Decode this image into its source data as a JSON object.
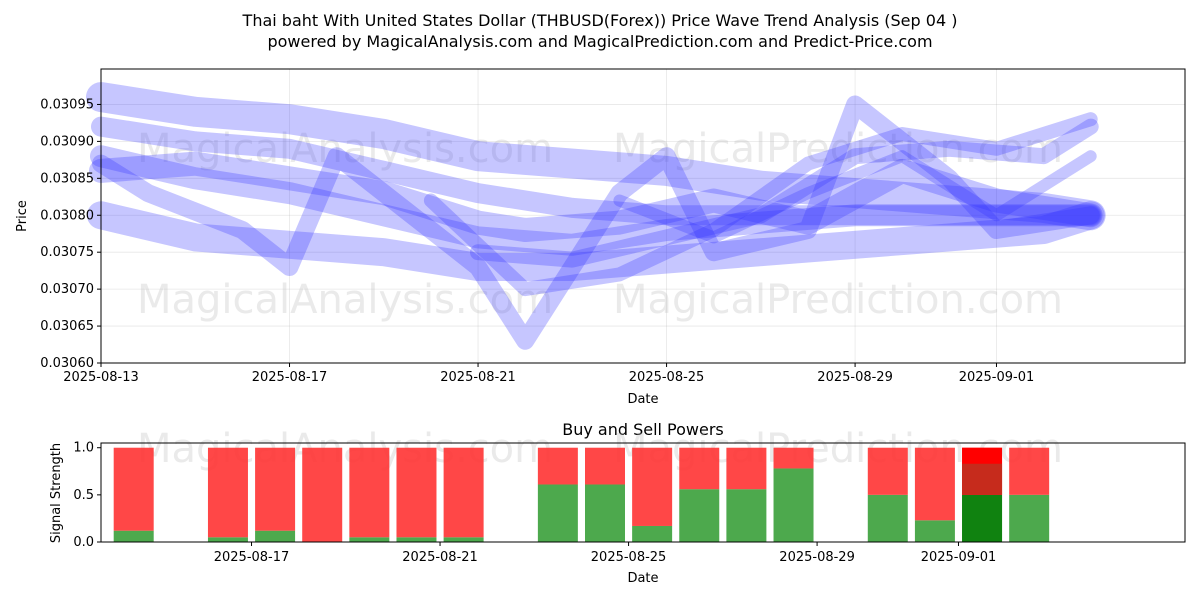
{
  "title_line1": "Thai baht With United States Dollar (THBUSD(Forex)) Price Wave Trend Analysis (Sep 04 )",
  "title_line2": "powered by MagicalAnalysis.com and MagicalPrediction.com and Predict-Price.com",
  "watermarks": [
    "MagicalAnalysis.com",
    "MagicalPrediction.com"
  ],
  "colors": {
    "wave": "#3333ff",
    "buy": "#2e9a2e",
    "sell": "#ff3333",
    "strong_buy": "#0a7d0a",
    "strong_sell": "#ff0000"
  },
  "chart_data": [
    {
      "type": "line",
      "title": "",
      "xlabel": "Date",
      "ylabel": "Price",
      "x_ticks": [
        "2025-08-13",
        "2025-08-17",
        "2025-08-21",
        "2025-08-25",
        "2025-08-29",
        "2025-09-01"
      ],
      "y_ticks": [
        "0.03060",
        "0.03065",
        "0.03070",
        "0.03075",
        "0.03080",
        "0.03085",
        "0.03090",
        "0.03095"
      ],
      "xlim": [
        "2025-08-13",
        "2025-09-05"
      ],
      "ylim": [
        0.0306,
        0.030998
      ],
      "grid": true,
      "series": [
        {
          "x": [
            "2025-08-13",
            "2025-08-15",
            "2025-08-17",
            "2025-08-19",
            "2025-08-21",
            "2025-08-23",
            "2025-08-25",
            "2025-08-27",
            "2025-08-29",
            "2025-08-31",
            "2025-09-02",
            "2025-09-03"
          ],
          "y": [
            0.03096,
            0.03094,
            0.03093,
            0.03091,
            0.03088,
            0.03087,
            0.03086,
            0.03084,
            0.03083,
            0.03082,
            0.03081,
            0.0308
          ]
        },
        {
          "x": [
            "2025-08-13",
            "2025-08-15",
            "2025-08-17",
            "2025-08-19",
            "2025-08-21",
            "2025-08-23",
            "2025-08-25",
            "2025-08-27",
            "2025-08-29",
            "2025-08-31",
            "2025-09-02",
            "2025-09-03"
          ],
          "y": [
            0.0308,
            0.03077,
            0.03076,
            0.03075,
            0.03073,
            0.03073,
            0.03074,
            0.03075,
            0.03076,
            0.03077,
            0.03078,
            0.0308
          ]
        },
        {
          "x": [
            "2025-08-13",
            "2025-08-15",
            "2025-08-17",
            "2025-08-19",
            "2025-08-21",
            "2025-08-23",
            "2025-08-25",
            "2025-08-27",
            "2025-08-29",
            "2025-08-31",
            "2025-09-02",
            "2025-09-03"
          ],
          "y": [
            0.03088,
            0.03085,
            0.03083,
            0.0308,
            0.03077,
            0.03076,
            0.03078,
            0.03079,
            0.0308,
            0.0308,
            0.0308,
            0.0308
          ]
        },
        {
          "x": [
            "2025-08-13",
            "2025-08-14",
            "2025-08-16",
            "2025-08-17",
            "2025-08-18",
            "2025-08-20",
            "2025-08-21",
            "2025-08-22",
            "2025-08-24",
            "2025-08-25",
            "2025-08-26",
            "2025-08-28",
            "2025-08-29",
            "2025-08-31",
            "2025-09-01",
            "2025-09-03"
          ],
          "y": [
            0.03087,
            0.03083,
            0.03078,
            0.03073,
            0.03088,
            0.03078,
            0.03073,
            0.03063,
            0.03083,
            0.03088,
            0.03075,
            0.03078,
            0.03095,
            0.03085,
            0.03078,
            0.0308
          ]
        },
        {
          "x": [
            "2025-08-13",
            "2025-08-15",
            "2025-08-17",
            "2025-08-19",
            "2025-08-21",
            "2025-08-22",
            "2025-08-24",
            "2025-08-26",
            "2025-08-28",
            "2025-08-30",
            "2025-09-01",
            "2025-09-03"
          ],
          "y": [
            0.03086,
            0.03087,
            0.03085,
            0.03083,
            0.03079,
            0.03078,
            0.03079,
            0.03082,
            0.03079,
            0.03086,
            0.03082,
            0.0308
          ]
        },
        {
          "x": [
            "2025-08-13",
            "2025-08-15",
            "2025-08-17",
            "2025-08-19",
            "2025-08-21",
            "2025-08-23",
            "2025-08-25",
            "2025-08-27",
            "2025-08-29",
            "2025-08-31",
            "2025-09-02",
            "2025-09-03"
          ],
          "y": [
            0.03092,
            0.0309,
            0.03089,
            0.03086,
            0.03083,
            0.03081,
            0.0308,
            0.0308,
            0.0308,
            0.0308,
            0.0308,
            0.0308
          ]
        },
        {
          "x": [
            "2025-08-21",
            "2025-08-23",
            "2025-08-25",
            "2025-08-27",
            "2025-08-29",
            "2025-08-31",
            "2025-09-02",
            "2025-09-03"
          ],
          "y": [
            0.03075,
            0.03074,
            0.03077,
            0.0308,
            0.03088,
            0.03089,
            0.03088,
            0.03092
          ]
        },
        {
          "x": [
            "2025-08-20",
            "2025-08-22",
            "2025-08-24",
            "2025-08-26",
            "2025-08-28",
            "2025-08-30",
            "2025-09-01",
            "2025-09-03"
          ],
          "y": [
            0.03082,
            0.0307,
            0.03072,
            0.03078,
            0.03087,
            0.03091,
            0.03089,
            0.03093
          ]
        },
        {
          "x": [
            "2025-08-24",
            "2025-08-26",
            "2025-08-28",
            "2025-08-30",
            "2025-09-01",
            "2025-09-03"
          ],
          "y": [
            0.03082,
            0.03077,
            0.03083,
            0.03088,
            0.0308,
            0.03088
          ]
        }
      ]
    },
    {
      "type": "bar",
      "title": "Buy and Sell Powers",
      "xlabel": "Date",
      "ylabel": "Signal Strength",
      "x_ticks": [
        "2025-08-17",
        "2025-08-21",
        "2025-08-25",
        "2025-08-29",
        "2025-09-01"
      ],
      "y_ticks": [
        "0.0",
        "0.5",
        "1.0"
      ],
      "ylim": [
        0,
        1.05
      ],
      "categories": [
        "2025-08-14",
        "2025-08-16",
        "2025-08-17",
        "2025-08-18",
        "2025-08-19",
        "2025-08-20",
        "2025-08-21",
        "2025-08-23",
        "2025-08-24",
        "2025-08-25",
        "2025-08-26",
        "2025-08-27",
        "2025-08-28",
        "2025-08-30",
        "2025-08-31",
        "2025-09-01",
        "2025-09-02"
      ],
      "series": [
        {
          "name": "buy",
          "values": [
            0.12,
            0.05,
            0.12,
            0.0,
            0.05,
            0.05,
            0.05,
            0.61,
            0.61,
            0.17,
            0.56,
            0.56,
            0.78,
            0.5,
            0.23,
            0.5,
            0.5
          ]
        },
        {
          "name": "sell",
          "values": [
            0.88,
            0.95,
            0.88,
            1.0,
            0.95,
            0.95,
            0.95,
            0.39,
            0.39,
            0.83,
            0.44,
            0.44,
            0.22,
            0.5,
            0.77,
            0.5,
            0.5
          ]
        }
      ],
      "strong": [
        "",
        "",
        "",
        "",
        "",
        "",
        "",
        "",
        "",
        "",
        "",
        "",
        "",
        "",
        "",
        "strong",
        ""
      ],
      "strong_overlay": [
        0,
        0,
        0,
        0,
        0,
        0,
        0,
        0,
        0,
        0,
        0,
        0,
        0,
        0,
        0,
        0.83,
        0
      ]
    }
  ]
}
